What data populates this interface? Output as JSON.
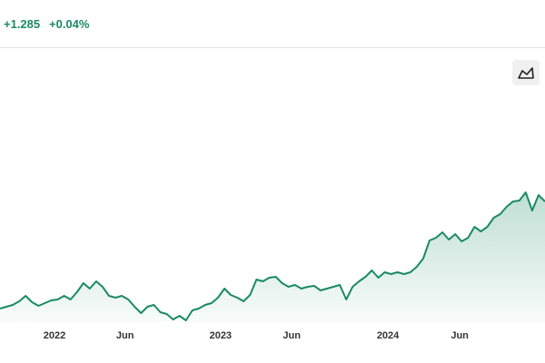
{
  "header": {
    "change": "+1.285",
    "change_percent": "+0.04%"
  },
  "chart_data": {
    "type": "line",
    "series": [
      {
        "color": "#1a8a64",
        "values": [
          15,
          17,
          19,
          23,
          29,
          22,
          18,
          21,
          24,
          25,
          29,
          25,
          33,
          43,
          37,
          45,
          39,
          29,
          27,
          29,
          25,
          17,
          10,
          17,
          19,
          11,
          9,
          3,
          7,
          2,
          13,
          15,
          19,
          21,
          27,
          37,
          30,
          27,
          23,
          30,
          47,
          45,
          49,
          50,
          43,
          39,
          41,
          37,
          39,
          40,
          35,
          37,
          39,
          41,
          25,
          39,
          45,
          50,
          57,
          49,
          55,
          53,
          55,
          53,
          55,
          61,
          70,
          90,
          93,
          99,
          91,
          97,
          89,
          93,
          105,
          100,
          105,
          115,
          119,
          127,
          133,
          134,
          143,
          123,
          140,
          133
        ]
      }
    ],
    "xlim": [
      0,
      85
    ],
    "ylim": [
      0,
      200
    ],
    "xticks": [
      {
        "value": 8.5,
        "label": "2022"
      },
      {
        "value": 19.5,
        "label": "Jun"
      },
      {
        "value": 34.4,
        "label": "2023"
      },
      {
        "value": 45.5,
        "label": "Jun"
      },
      {
        "value": 60.5,
        "label": "2024"
      },
      {
        "value": 71.7,
        "label": "Jun"
      }
    ],
    "area": true
  }
}
